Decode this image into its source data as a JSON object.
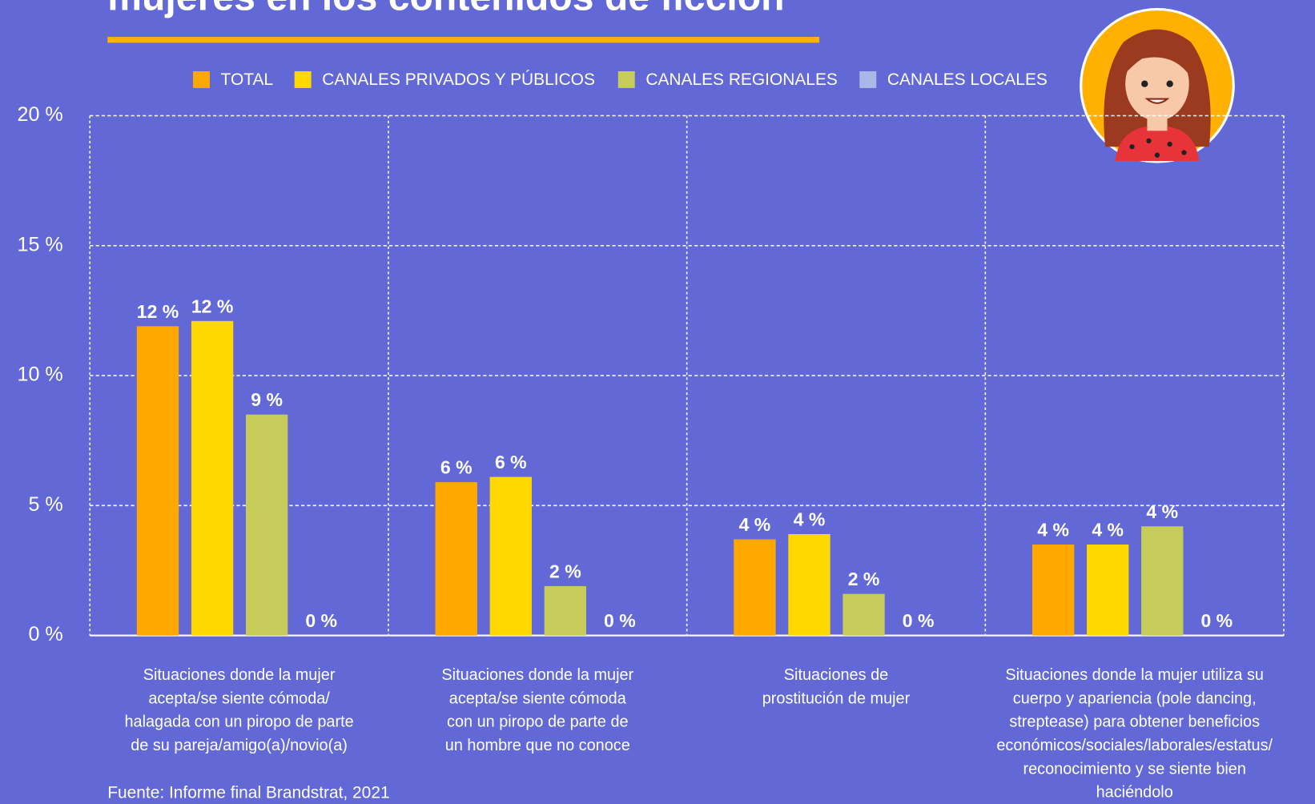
{
  "chart_data": {
    "type": "bar",
    "title": "mujeres en los contenidos de ficción",
    "source": "Fuente: Informe final Brandstrat, 2021",
    "categories": [
      [
        "Situaciones donde la  mujer",
        "acepta/se siente cómoda/",
        "halagada con un piropo de parte",
        "de su pareja/amigo(a)/novio(a)"
      ],
      [
        "Situaciones donde la mujer",
        "acepta/se siente cómoda",
        "con un piropo de parte de",
        "un hombre que no conoce"
      ],
      [
        "Situaciones de",
        "prostitución de mujer"
      ],
      [
        "Situaciones donde la  mujer utiliza su",
        "cuerpo y apariencia (pole dancing,",
        "streptease) para obtener beneficios",
        "económicos/sociales/laborales/estatus/",
        "reconocimiento y se siente bien",
        "haciéndolo"
      ]
    ],
    "series": [
      {
        "name": "TOTAL",
        "color": "#FFA800",
        "values": [
          11.9,
          5.9,
          3.7,
          3.5
        ],
        "value_labels": [
          "12 %",
          "6 %",
          "4 %",
          "4 %"
        ]
      },
      {
        "name": "CANALES PRIVADOS Y PÚBLICOS",
        "color": "#FFD800",
        "values": [
          12.1,
          6.1,
          3.9,
          3.5
        ],
        "value_labels": [
          "12 %",
          "6 %",
          "4 %",
          "4 %"
        ]
      },
      {
        "name": "CANALES REGIONALES",
        "color": "#C5CC5A",
        "values": [
          8.5,
          1.9,
          1.6,
          4.2
        ],
        "value_labels": [
          "9 %",
          "2 %",
          "2 %",
          "4 %"
        ]
      },
      {
        "name": "CANALES LOCALES",
        "color": "#A9B8E8",
        "values": [
          0,
          0,
          0,
          0
        ],
        "value_labels": [
          "0 %",
          "0 %",
          "0 %",
          "0 %"
        ]
      }
    ],
    "ylim": [
      0,
      20
    ],
    "yticks": [
      {
        "value": 0,
        "label": "0 %"
      },
      {
        "value": 5,
        "label": "5 %"
      },
      {
        "value": 10,
        "label": "10 %"
      },
      {
        "value": 15,
        "label": "15 %"
      },
      {
        "value": 20,
        "label": "20 %"
      }
    ],
    "grid": true
  }
}
